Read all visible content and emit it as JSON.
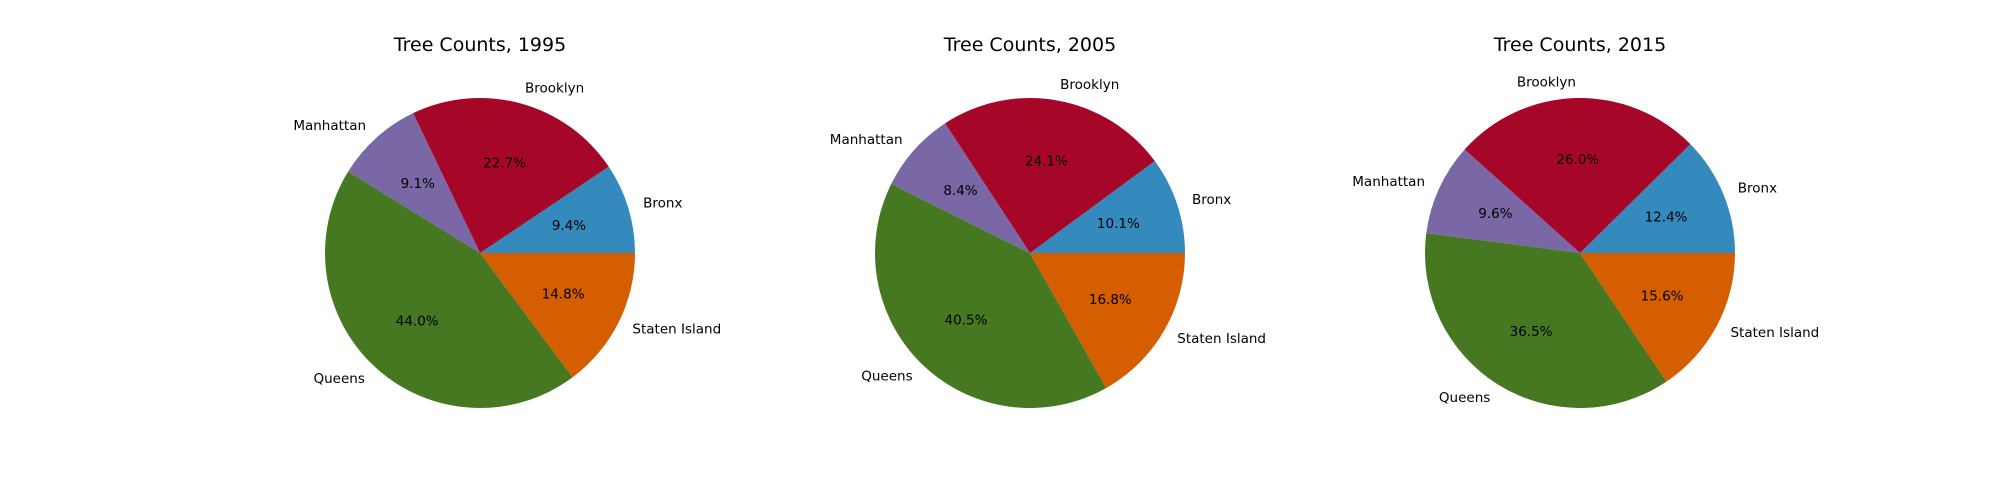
{
  "figure": {
    "background": "#ffffff"
  },
  "chart_data": [
    {
      "type": "pie",
      "title": "Tree Counts, 1995",
      "labels": [
        "Bronx",
        "Brooklyn",
        "Manhattan",
        "Queens",
        "Staten Island"
      ],
      "values": [
        9.4,
        22.7,
        9.1,
        44.0,
        14.8
      ],
      "value_labels": [
        "9.4%",
        "22.7%",
        "9.1%",
        "44.0%",
        "14.8%"
      ],
      "colors": [
        "#348abd",
        "#a60628",
        "#7a68a6",
        "#467821",
        "#d55e00"
      ],
      "start_angle": 0,
      "direction": "counterclockwise"
    },
    {
      "type": "pie",
      "title": "Tree Counts, 2005",
      "labels": [
        "Bronx",
        "Brooklyn",
        "Manhattan",
        "Queens",
        "Staten Island"
      ],
      "values": [
        10.1,
        24.1,
        8.4,
        40.5,
        16.8
      ],
      "value_labels": [
        "10.1%",
        "24.1%",
        "8.4%",
        "40.5%",
        "16.8%"
      ],
      "colors": [
        "#348abd",
        "#a60628",
        "#7a68a6",
        "#467821",
        "#d55e00"
      ],
      "start_angle": 0,
      "direction": "counterclockwise"
    },
    {
      "type": "pie",
      "title": "Tree Counts, 2015",
      "labels": [
        "Bronx",
        "Brooklyn",
        "Manhattan",
        "Queens",
        "Staten Island"
      ],
      "values": [
        12.4,
        26.0,
        9.6,
        36.5,
        15.6
      ],
      "value_labels": [
        "12.4%",
        "26.0%",
        "9.6%",
        "36.5%",
        "15.6%"
      ],
      "colors": [
        "#348abd",
        "#a60628",
        "#7a68a6",
        "#467821",
        "#d55e00"
      ],
      "start_angle": 0,
      "direction": "counterclockwise"
    }
  ]
}
